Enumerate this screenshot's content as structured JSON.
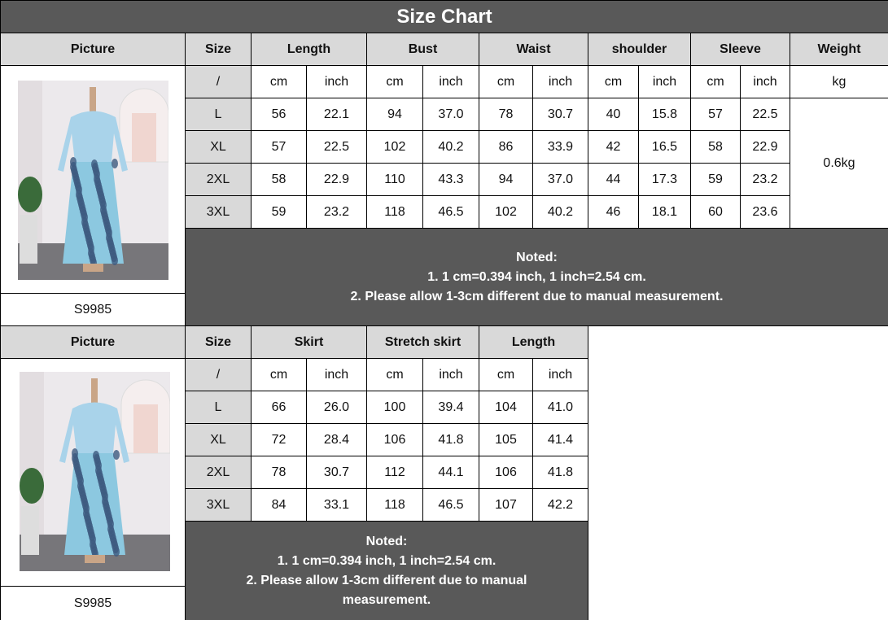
{
  "title": "Size Chart",
  "table1": {
    "headers": [
      "Picture",
      "Size",
      "Length",
      "Bust",
      "Waist",
      "shoulder",
      "Sleeve",
      "Weight"
    ],
    "units_row": [
      "/",
      "cm",
      "inch",
      "cm",
      "inch",
      "cm",
      "inch",
      "cm",
      "inch",
      "cm",
      "inch",
      "kg"
    ],
    "rows": [
      [
        "L",
        "56",
        "22.1",
        "94",
        "37.0",
        "78",
        "30.7",
        "40",
        "15.8",
        "57",
        "22.5"
      ],
      [
        "XL",
        "57",
        "22.5",
        "102",
        "40.2",
        "86",
        "33.9",
        "42",
        "16.5",
        "58",
        "22.9"
      ],
      [
        "2XL",
        "58",
        "22.9",
        "110",
        "43.3",
        "94",
        "37.0",
        "44",
        "17.3",
        "59",
        "23.2"
      ],
      [
        "3XL",
        "59",
        "23.2",
        "118",
        "46.5",
        "102",
        "40.2",
        "46",
        "18.1",
        "60",
        "23.6"
      ]
    ],
    "weight": "0.6kg",
    "sku": "S9985",
    "note": [
      "Noted:",
      "1. 1 cm=0.394 inch, 1 inch=2.54 cm.",
      "2. Please allow 1-3cm different due to manual measurement."
    ]
  },
  "table2": {
    "headers": [
      "Picture",
      "Size",
      "Skirt",
      "Stretch skirt",
      "Length"
    ],
    "units_row": [
      "/",
      "cm",
      "inch",
      "cm",
      "inch",
      "cm",
      "inch"
    ],
    "rows": [
      [
        "L",
        "66",
        "26.0",
        "100",
        "39.4",
        "104",
        "41.0"
      ],
      [
        "XL",
        "72",
        "28.4",
        "106",
        "41.8",
        "105",
        "41.4"
      ],
      [
        "2XL",
        "78",
        "30.7",
        "112",
        "44.1",
        "106",
        "41.8"
      ],
      [
        "3XL",
        "84",
        "33.1",
        "118",
        "46.5",
        "107",
        "42.2"
      ]
    ],
    "sku": "S9985",
    "note": [
      "Noted:",
      "1. 1 cm=0.394 inch, 1 inch=2.54 cm.",
      "2. Please allow 1-3cm different due to manual",
      "measurement."
    ]
  },
  "colors": {
    "dark": "#595959",
    "header": "#d9d9d9",
    "dress_top": "#a9d3ea",
    "dress_print": "#3d5a80"
  }
}
